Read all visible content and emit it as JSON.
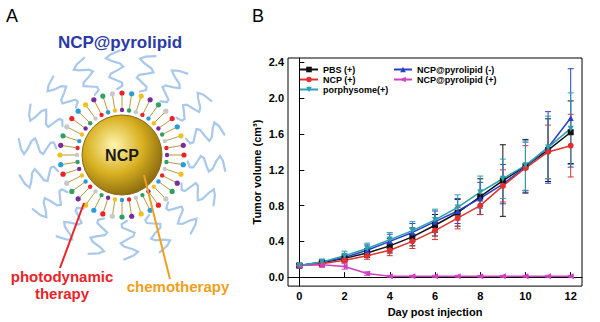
{
  "panel_a": {
    "label": "A",
    "title": "NCP@pyrolipid",
    "core": "NCP",
    "annotations": [
      {
        "lines": [
          "photodynamic",
          "therapy"
        ],
        "color": "#e8242a"
      },
      {
        "lines": [
          "chemotherapy"
        ],
        "color": "#f0a020"
      }
    ]
  },
  "panel_b": {
    "label": "B"
  },
  "chart_data": {
    "type": "line",
    "x_label": "Day post injection",
    "y_label": "Tumor volume (cm³)",
    "x": [
      0,
      1,
      2,
      3,
      4,
      5,
      6,
      7,
      8,
      9,
      10,
      11,
      12
    ],
    "series": [
      {
        "name": "PBS (+)",
        "color": "#111111",
        "marker": "square",
        "values": [
          0.13,
          0.16,
          0.21,
          0.27,
          0.35,
          0.45,
          0.58,
          0.72,
          0.9,
          1.08,
          1.24,
          1.42,
          1.62
        ],
        "errors": [
          0.02,
          0.03,
          0.04,
          0.05,
          0.08,
          0.1,
          0.12,
          0.15,
          0.2,
          0.4,
          0.3,
          0.35,
          0.35
        ]
      },
      {
        "name": "NCP@pyrolipid (-)",
        "color": "#2a3fc8",
        "marker": "triangle",
        "values": [
          0.13,
          0.17,
          0.22,
          0.3,
          0.4,
          0.5,
          0.62,
          0.74,
          0.88,
          1.04,
          1.23,
          1.45,
          1.78
        ],
        "errors": [
          0.02,
          0.03,
          0.04,
          0.06,
          0.08,
          0.1,
          0.12,
          0.14,
          0.18,
          0.22,
          0.28,
          0.4,
          0.55
        ]
      },
      {
        "name": "NCP (+)",
        "color": "#e03030",
        "marker": "circle",
        "values": [
          0.13,
          0.15,
          0.19,
          0.24,
          0.3,
          0.4,
          0.52,
          0.66,
          0.8,
          1.02,
          1.22,
          1.4,
          1.47
        ],
        "errors": [
          0.02,
          0.03,
          0.03,
          0.04,
          0.06,
          0.08,
          0.1,
          0.12,
          0.1,
          0.18,
          0.25,
          0.3,
          0.35
        ]
      },
      {
        "name": "NCP@pyrolipid (+)",
        "color": "#d040c0",
        "marker": "triangle-left",
        "values": [
          0.13,
          0.14,
          0.12,
          0.04,
          0.01,
          0.01,
          0.01,
          0.01,
          0.01,
          0.01,
          0.01,
          0.01,
          0.01
        ],
        "errors": [
          0.02,
          0.03,
          0.03,
          0.02,
          0.01,
          0.01,
          0.01,
          0.01,
          0.01,
          0.01,
          0.01,
          0.01,
          0.01
        ]
      },
      {
        "name": "porphysome(+)",
        "color": "#2aa0b0",
        "marker": "triangle-down",
        "values": [
          0.13,
          0.17,
          0.24,
          0.32,
          0.42,
          0.52,
          0.64,
          0.78,
          0.95,
          1.1,
          1.25,
          1.45,
          1.66
        ],
        "errors": [
          0.02,
          0.03,
          0.05,
          0.06,
          0.08,
          0.1,
          0.12,
          0.14,
          0.18,
          0.22,
          0.28,
          0.35,
          0.4
        ]
      }
    ],
    "xlim": [
      -0.5,
      12.5
    ],
    "xticks": [
      0,
      2,
      4,
      6,
      8,
      10,
      12
    ],
    "ylim": [
      -0.1,
      2.45
    ],
    "yticks": [
      {
        "value": 0,
        "label": "0.0"
      },
      0.4,
      0.8,
      1.2,
      1.6,
      {
        "value": 2,
        "label": "2.0"
      },
      2.4
    ],
    "legend": "upper left",
    "grid": false
  }
}
